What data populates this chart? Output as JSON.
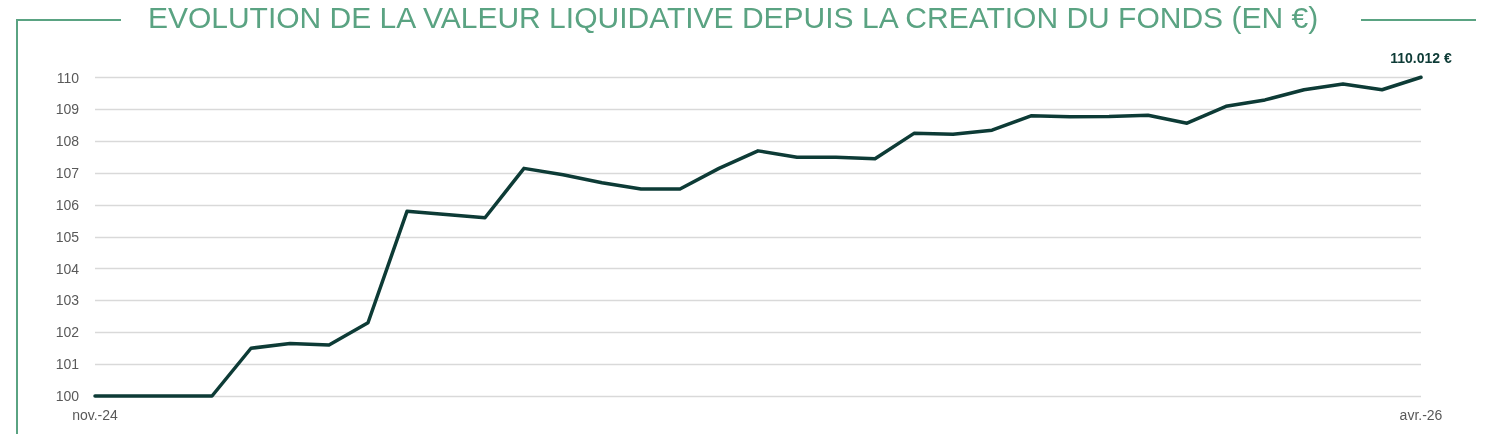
{
  "chart_data": {
    "type": "line",
    "title": "EVOLUTION DE LA VALEUR LIQUIDATIVE DEPUIS LA CREATION DU FONDS (EN €)",
    "categories": [
      "nov.-24",
      null,
      null,
      null,
      null,
      null,
      null,
      null,
      null,
      null,
      null,
      null,
      null,
      null,
      null,
      null,
      null,
      null,
      null,
      null,
      null,
      null,
      null,
      null,
      null,
      null,
      null,
      null,
      null,
      null,
      null,
      null,
      null,
      null,
      "avr.-26"
    ],
    "series": [
      {
        "color": "#0d3b36",
        "values": [
          100,
          100,
          100,
          100,
          101.5,
          101.65,
          101.6,
          102.3,
          105.8,
          105.7,
          105.6,
          107.15,
          106.95,
          106.7,
          106.5,
          106.5,
          107.15,
          107.7,
          107.5,
          107.5,
          107.45,
          108.25,
          108.22,
          108.35,
          108.8,
          108.77,
          108.78,
          108.82,
          108.57,
          109.1,
          109.3,
          109.62,
          109.8,
          109.62,
          110.012
        ],
        "value_labels": [
          null,
          null,
          null,
          null,
          null,
          null,
          null,
          null,
          null,
          null,
          null,
          null,
          null,
          null,
          null,
          null,
          null,
          null,
          null,
          null,
          null,
          null,
          null,
          null,
          null,
          null,
          null,
          null,
          null,
          null,
          null,
          null,
          null,
          null,
          "110.012 €"
        ]
      }
    ],
    "ylim": [
      100,
      110.02
    ],
    "yticks": [
      100,
      101,
      102,
      103,
      104,
      105,
      106,
      107,
      108,
      109,
      110
    ],
    "grid": "y",
    "marker": "none",
    "line_style": "solid"
  }
}
